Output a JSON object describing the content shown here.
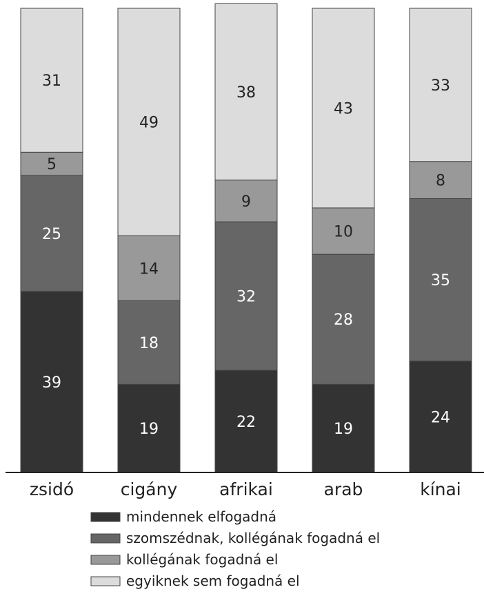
{
  "chart_data": {
    "type": "bar",
    "stacked": true,
    "categories": [
      "zsidó",
      "cigány",
      "afrikai",
      "arab",
      "kínai"
    ],
    "series": [
      {
        "name": "mindennek elfogadná",
        "color": "#333333",
        "label_color": "#ffffff",
        "values": [
          39,
          19,
          22,
          19,
          24
        ]
      },
      {
        "name": "szomszédnak, kollégának fogadná el",
        "color": "#666666",
        "label_color": "#ffffff",
        "values": [
          25,
          18,
          32,
          28,
          35
        ]
      },
      {
        "name": "kollégának fogadná el",
        "color": "#999999",
        "label_color": "#222222",
        "values": [
          5,
          14,
          9,
          10,
          8
        ]
      },
      {
        "name": "egyiknek sem fogadná el",
        "color": "#dcdcdc",
        "label_color": "#222222",
        "values": [
          31,
          49,
          38,
          43,
          33
        ]
      }
    ],
    "ylim": [
      0,
      100
    ],
    "grid": false,
    "legend_position": "bottom"
  }
}
